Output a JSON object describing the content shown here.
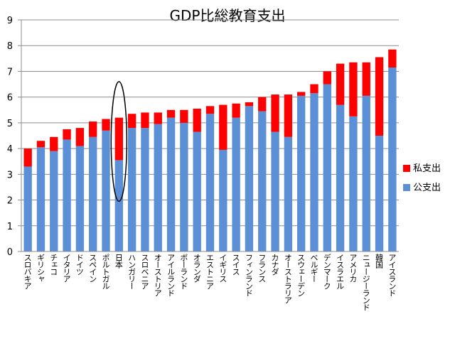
{
  "chart_data": {
    "type": "bar",
    "stacked": true,
    "title": "GDP比総教育支出",
    "xlabel": "",
    "ylabel": "",
    "ylim": [
      0,
      9
    ],
    "yticks": [
      "0",
      "1",
      "2",
      "3",
      "4",
      "5",
      "6",
      "7",
      "8",
      "9"
    ],
    "grid": true,
    "legend_position": "right",
    "categories": [
      "スロバキア",
      "ギリシャ",
      "チェコ",
      "イタリア",
      "ドイツ",
      "スペイン",
      "ポルトガル",
      "日本",
      "ハンガリー",
      "スロベニア",
      "オーストリア",
      "アイルランド",
      "ポーランド",
      "オランダ",
      "エストニア",
      "イギリス",
      "スイス",
      "フィンランド",
      "フランス",
      "カナダ",
      "オーストラリア",
      "スウェーデン",
      "ベルギー",
      "デンマーク",
      "イスラエル",
      "アメリカ",
      "ニュージーランド",
      "韓国",
      "アイスランド"
    ],
    "series": [
      {
        "name": "公支出",
        "color": "#5B8FD6",
        "values": [
          3.3,
          4.05,
          3.9,
          4.35,
          4.1,
          4.45,
          4.7,
          3.55,
          4.8,
          4.8,
          4.95,
          5.2,
          5.0,
          4.65,
          5.35,
          3.95,
          5.2,
          5.65,
          5.45,
          4.65,
          4.45,
          6.05,
          6.15,
          6.5,
          5.7,
          5.25,
          6.05,
          4.5,
          7.15
        ]
      },
      {
        "name": "私支出",
        "color": "#FF0000",
        "values": [
          0.7,
          0.25,
          0.55,
          0.4,
          0.7,
          0.6,
          0.45,
          1.65,
          0.55,
          0.6,
          0.45,
          0.3,
          0.5,
          0.9,
          0.3,
          1.75,
          0.55,
          0.15,
          0.55,
          1.45,
          1.65,
          0.15,
          0.35,
          0.5,
          1.6,
          2.1,
          1.3,
          3.05,
          0.7
        ]
      }
    ],
    "annotation": {
      "type": "ellipse",
      "category": "日本"
    }
  }
}
